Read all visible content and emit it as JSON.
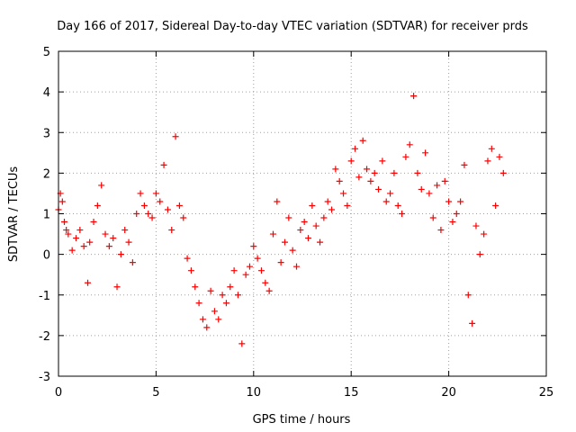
{
  "chart_data": {
    "type": "scatter",
    "title": "Day 166 of 2017, Sidereal Day-to-day VTEC variation (SDTVAR) for receiver prds",
    "xlabel": "GPS time / hours",
    "ylabel": "SDTVAR / TECUs",
    "xlim": [
      0,
      25
    ],
    "ylim": [
      -3,
      5
    ],
    "xticks": [
      0,
      5,
      10,
      15,
      20,
      25
    ],
    "yticks": [
      -3,
      -2,
      -1,
      0,
      1,
      2,
      3,
      4,
      5
    ],
    "xtick_labels": [
      "0",
      "5",
      "10",
      "15",
      "20",
      "25"
    ],
    "ytick_labels": [
      "-3",
      "-2",
      "-1",
      "0",
      "1",
      "2",
      "3",
      "4",
      "5"
    ],
    "grid": true,
    "marker": "+",
    "color": "#ff0000",
    "series": [
      {
        "name": "SDTVAR",
        "x": [
          0.0,
          0.1,
          0.2,
          0.3,
          0.4,
          0.5,
          0.7,
          0.9,
          1.1,
          1.3,
          1.5,
          1.6,
          1.8,
          2.0,
          2.2,
          2.4,
          2.6,
          2.8,
          3.0,
          3.2,
          3.4,
          3.6,
          3.8,
          4.0,
          4.2,
          4.4,
          4.6,
          4.8,
          5.0,
          5.2,
          5.4,
          5.6,
          5.8,
          6.0,
          6.2,
          6.4,
          6.6,
          6.8,
          7.0,
          7.2,
          7.4,
          7.6,
          7.8,
          8.0,
          8.2,
          8.4,
          8.6,
          8.8,
          9.0,
          9.2,
          9.4,
          9.6,
          9.8,
          10.0,
          10.2,
          10.4,
          10.6,
          10.8,
          11.0,
          11.2,
          11.4,
          11.6,
          11.8,
          12.0,
          12.2,
          12.4,
          12.6,
          12.8,
          13.0,
          13.2,
          13.4,
          13.6,
          13.8,
          14.0,
          14.2,
          14.4,
          14.6,
          14.8,
          15.0,
          15.2,
          15.4,
          15.6,
          15.8,
          16.0,
          16.2,
          16.4,
          16.6,
          16.8,
          17.0,
          17.2,
          17.4,
          17.6,
          17.8,
          18.0,
          18.2,
          18.4,
          18.6,
          18.8,
          19.0,
          19.2,
          19.4,
          19.6,
          19.8,
          20.0,
          20.2,
          20.4,
          20.6,
          20.8,
          21.0,
          21.2,
          21.4,
          21.6,
          21.8,
          22.0,
          22.2,
          22.4,
          22.6,
          22.8
        ],
        "y": [
          1.1,
          1.5,
          1.3,
          0.8,
          0.6,
          0.5,
          0.1,
          0.4,
          0.6,
          0.2,
          -0.7,
          0.3,
          0.8,
          1.2,
          1.7,
          0.5,
          0.2,
          0.4,
          -0.8,
          0.0,
          0.6,
          0.3,
          -0.2,
          1.0,
          1.5,
          1.2,
          1.0,
          0.9,
          1.5,
          1.3,
          2.2,
          1.1,
          0.6,
          2.9,
          1.2,
          0.9,
          -0.1,
          -0.4,
          -0.8,
          -1.2,
          -1.6,
          -1.8,
          -0.9,
          -1.4,
          -1.6,
          -1.0,
          -1.2,
          -0.8,
          -0.4,
          -1.0,
          -2.2,
          -0.5,
          -0.3,
          0.2,
          -0.1,
          -0.4,
          -0.7,
          -0.9,
          0.5,
          1.3,
          -0.2,
          0.3,
          0.9,
          0.1,
          -0.3,
          0.6,
          0.8,
          0.4,
          1.2,
          0.7,
          0.3,
          0.9,
          1.3,
          1.1,
          2.1,
          1.8,
          1.5,
          1.2,
          2.3,
          2.6,
          1.9,
          2.8,
          2.1,
          1.8,
          2.0,
          1.6,
          2.3,
          1.3,
          1.5,
          2.0,
          1.2,
          1.0,
          2.4,
          2.7,
          3.9,
          2.0,
          1.6,
          2.5,
          1.5,
          0.9,
          1.7,
          0.6,
          1.8,
          1.3,
          0.8,
          1.0,
          1.3,
          2.2,
          -1.0,
          -1.7,
          0.7,
          0.0,
          0.5,
          2.3,
          2.6,
          1.2,
          2.4,
          2.0
        ]
      }
    ]
  }
}
